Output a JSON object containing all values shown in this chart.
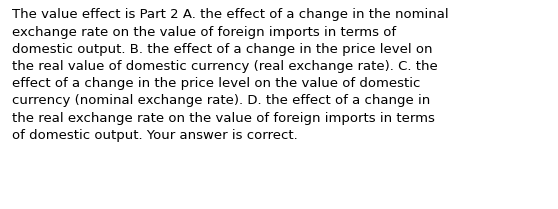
{
  "lines": [
    "The value effect is Part 2 A. the effect of a change in the nominal",
    "exchange rate on the value of foreign imports in terms of",
    "domestic output. B. the effect of a change in the price level on",
    "the real value of domestic currency​ (real exchange​ rate). C. the",
    "effect of a change in the price level on the value of domestic",
    "currency​ (nominal exchange​ rate). D. the effect of a change in",
    "the real exchange rate on the value of foreign imports in terms",
    "of domestic output. Your answer is correct."
  ],
  "background_color": "#ffffff",
  "text_color": "#000000",
  "font_size": 9.5,
  "fig_width": 5.58,
  "fig_height": 2.09,
  "dpi": 100
}
